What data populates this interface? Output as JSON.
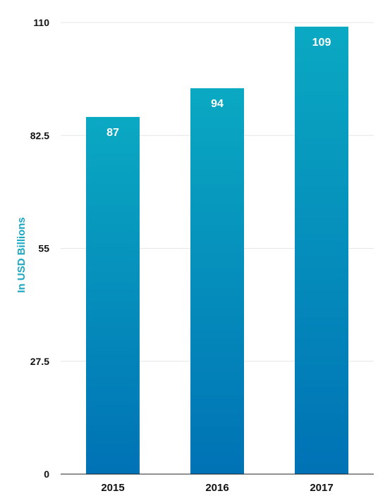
{
  "chart_data": {
    "type": "bar",
    "categories": [
      "2015",
      "2016",
      "2017"
    ],
    "values": [
      87,
      94,
      109
    ],
    "data_labels": [
      "87",
      "94",
      "109"
    ],
    "title": "",
    "xlabel": "",
    "ylabel": "In USD Billions",
    "ylim": [
      0,
      110
    ],
    "yticks": [
      0,
      27.5,
      55,
      82.5,
      110
    ],
    "ytick_labels": [
      "0",
      "27.5",
      "55",
      "82.5",
      "110"
    ],
    "grid": true,
    "colors": {
      "bar_top": "#0aa9c2",
      "bar_bottom": "#0072b5",
      "ylabel": "#1aa7c4",
      "grid": "#e6e6e6",
      "axis": "#222222"
    }
  }
}
